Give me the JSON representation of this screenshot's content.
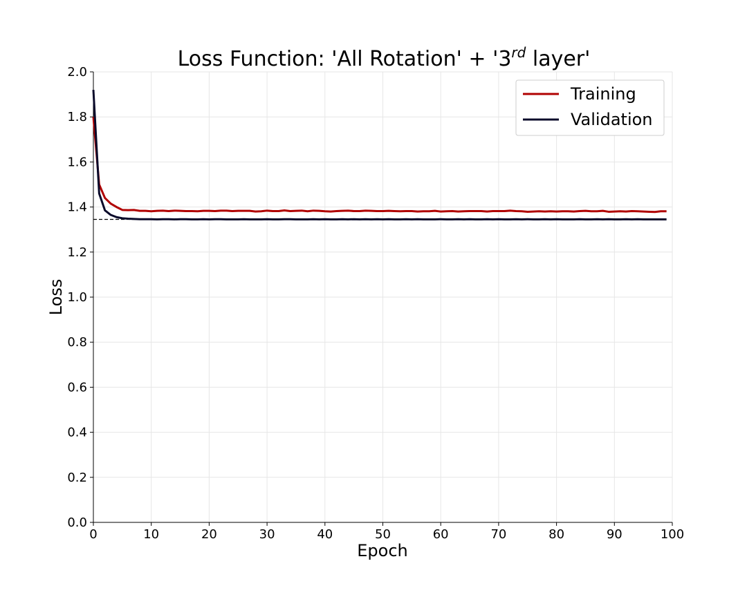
{
  "chart_data": {
    "type": "line",
    "title": {
      "prefix": "Loss Function: 'All Rotation' + '3",
      "superscript": "rd",
      "suffix": " layer'"
    },
    "xlabel": "Epoch",
    "ylabel": "Loss",
    "xlim": [
      0,
      100
    ],
    "ylim": [
      0.0,
      2.0
    ],
    "xticks": [
      0,
      10,
      20,
      30,
      40,
      50,
      60,
      70,
      80,
      90,
      100
    ],
    "xtick_labels": [
      "0",
      "10",
      "20",
      "30",
      "40",
      "50",
      "60",
      "70",
      "80",
      "90",
      "100"
    ],
    "yticks": [
      0.0,
      0.2,
      0.4,
      0.6,
      0.8,
      1.0,
      1.2,
      1.4,
      1.6,
      1.8,
      2.0
    ],
    "ytick_labels": [
      "0.0",
      "0.2",
      "0.4",
      "0.6",
      "0.8",
      "1.0",
      "1.2",
      "1.4",
      "1.6",
      "1.8",
      "2.0"
    ],
    "grid": true,
    "legend_position": "top-right",
    "reference_line": {
      "y": 1.345,
      "x_range": [
        0,
        8
      ],
      "style": "dashed",
      "color": "#000000"
    },
    "series": [
      {
        "name": "Training",
        "color": "#b00000",
        "x": [
          0,
          1,
          2,
          3,
          4,
          5,
          6,
          7,
          8,
          9,
          10,
          11,
          12,
          13,
          14,
          15,
          16,
          17,
          18,
          19,
          20,
          21,
          22,
          23,
          24,
          25,
          26,
          27,
          28,
          29,
          30,
          31,
          32,
          33,
          34,
          35,
          36,
          37,
          38,
          39,
          40,
          41,
          42,
          43,
          44,
          45,
          46,
          47,
          48,
          49,
          50,
          51,
          52,
          53,
          54,
          55,
          56,
          57,
          58,
          59,
          60,
          61,
          62,
          63,
          64,
          65,
          66,
          67,
          68,
          69,
          70,
          71,
          72,
          73,
          74,
          75,
          76,
          77,
          78,
          79,
          80,
          81,
          82,
          83,
          84,
          85,
          86,
          87,
          88,
          89,
          90,
          91,
          92,
          93,
          94,
          95,
          96,
          97,
          98,
          99
        ],
        "values": [
          1.8,
          1.5,
          1.44,
          1.415,
          1.4,
          1.387,
          1.386,
          1.387,
          1.383,
          1.383,
          1.381,
          1.383,
          1.384,
          1.382,
          1.384,
          1.383,
          1.382,
          1.382,
          1.381,
          1.383,
          1.383,
          1.382,
          1.384,
          1.384,
          1.382,
          1.383,
          1.383,
          1.383,
          1.38,
          1.381,
          1.384,
          1.382,
          1.382,
          1.385,
          1.382,
          1.383,
          1.384,
          1.381,
          1.384,
          1.383,
          1.381,
          1.38,
          1.382,
          1.383,
          1.384,
          1.382,
          1.382,
          1.384,
          1.383,
          1.382,
          1.382,
          1.383,
          1.382,
          1.381,
          1.382,
          1.382,
          1.38,
          1.381,
          1.381,
          1.383,
          1.38,
          1.381,
          1.382,
          1.38,
          1.381,
          1.382,
          1.382,
          1.382,
          1.38,
          1.382,
          1.382,
          1.382,
          1.384,
          1.382,
          1.381,
          1.379,
          1.38,
          1.381,
          1.38,
          1.381,
          1.38,
          1.381,
          1.381,
          1.38,
          1.382,
          1.383,
          1.381,
          1.381,
          1.383,
          1.379,
          1.38,
          1.381,
          1.38,
          1.382,
          1.381,
          1.38,
          1.379,
          1.378,
          1.381,
          1.381
        ]
      },
      {
        "name": "Validation",
        "color": "#0a0a2a",
        "x": [
          0,
          1,
          2,
          3,
          4,
          5,
          6,
          7,
          8,
          9,
          10,
          11,
          12,
          13,
          14,
          15,
          16,
          17,
          18,
          19,
          20,
          21,
          22,
          23,
          24,
          25,
          26,
          27,
          28,
          29,
          30,
          31,
          32,
          33,
          34,
          35,
          36,
          37,
          38,
          39,
          40,
          41,
          42,
          43,
          44,
          45,
          46,
          47,
          48,
          49,
          50,
          51,
          52,
          53,
          54,
          55,
          56,
          57,
          58,
          59,
          60,
          61,
          62,
          63,
          64,
          65,
          66,
          67,
          68,
          69,
          70,
          71,
          72,
          73,
          74,
          75,
          76,
          77,
          78,
          79,
          80,
          81,
          82,
          83,
          84,
          85,
          86,
          87,
          88,
          89,
          90,
          91,
          92,
          93,
          94,
          95,
          96,
          97,
          98,
          99
        ],
        "values": [
          1.92,
          1.46,
          1.385,
          1.365,
          1.355,
          1.35,
          1.348,
          1.347,
          1.346,
          1.346,
          1.346,
          1.345,
          1.346,
          1.346,
          1.345,
          1.346,
          1.346,
          1.345,
          1.345,
          1.346,
          1.345,
          1.346,
          1.346,
          1.345,
          1.345,
          1.345,
          1.346,
          1.345,
          1.345,
          1.345,
          1.346,
          1.345,
          1.345,
          1.346,
          1.346,
          1.345,
          1.345,
          1.345,
          1.346,
          1.345,
          1.346,
          1.345,
          1.345,
          1.346,
          1.345,
          1.346,
          1.345,
          1.346,
          1.345,
          1.346,
          1.345,
          1.346,
          1.345,
          1.345,
          1.346,
          1.345,
          1.346,
          1.345,
          1.345,
          1.345,
          1.346,
          1.345,
          1.345,
          1.346,
          1.345,
          1.346,
          1.345,
          1.345,
          1.346,
          1.345,
          1.346,
          1.345,
          1.345,
          1.346,
          1.345,
          1.346,
          1.345,
          1.345,
          1.346,
          1.345,
          1.346,
          1.345,
          1.345,
          1.345,
          1.346,
          1.345,
          1.345,
          1.346,
          1.345,
          1.346,
          1.345,
          1.345,
          1.346,
          1.345,
          1.346,
          1.345,
          1.345,
          1.345,
          1.345,
          1.345
        ]
      }
    ]
  }
}
